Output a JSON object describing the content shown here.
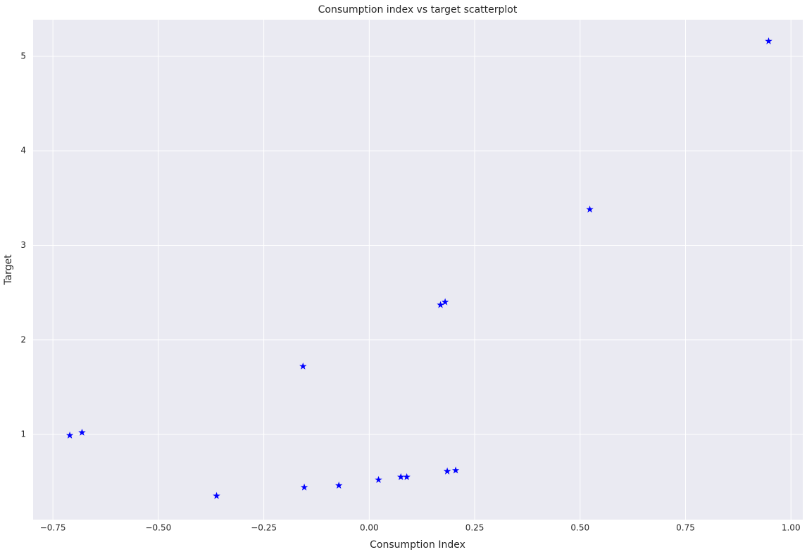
{
  "chart_data": {
    "type": "scatter",
    "title": "Consumption index vs target scatterplot",
    "x_label": "Consumption Index",
    "y_label": "Target",
    "x": [
      -0.71,
      -0.681,
      -0.362,
      -0.157,
      -0.154,
      -0.072,
      0.022,
      0.075,
      0.089,
      0.169,
      0.18,
      0.185,
      0.205,
      0.523,
      0.947
    ],
    "values": [
      0.99,
      1.02,
      0.35,
      1.72,
      0.44,
      0.46,
      0.52,
      0.55,
      0.55,
      2.37,
      2.4,
      0.61,
      0.62,
      3.38,
      5.16
    ],
    "color": "#0000ff",
    "xlim": [
      -0.797,
      1.028
    ],
    "ylim": [
      0.099,
      5.387
    ],
    "xticks": [
      {
        "value": -0.75,
        "label": "−0.75"
      },
      {
        "value": -0.5,
        "label": "−0.50"
      },
      {
        "value": -0.25,
        "label": "−0.25"
      },
      {
        "value": 0,
        "label": "0.00"
      },
      {
        "value": 0.25,
        "label": "0.25"
      },
      {
        "value": 0.5,
        "label": "0.50"
      },
      {
        "value": 0.75,
        "label": "0.75"
      },
      {
        "value": 1,
        "label": "1.00"
      }
    ],
    "yticks": [
      1,
      2,
      3,
      4,
      5
    ],
    "grid": true
  }
}
